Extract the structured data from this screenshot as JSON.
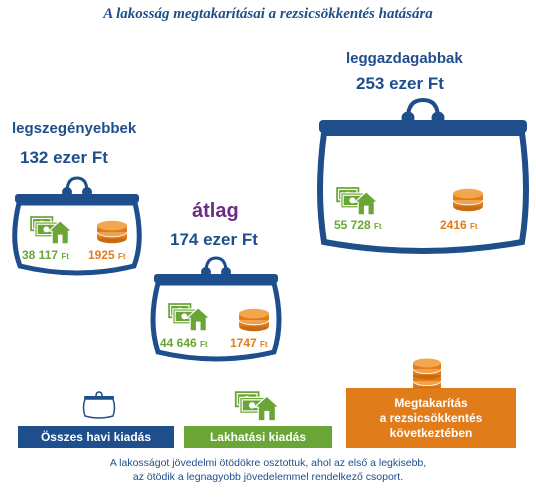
{
  "title": "A lakosság megtakarításai a rezsicsökkentés hatására",
  "colors": {
    "blue": "#1f4e8c",
    "green": "#6aa535",
    "orange": "#e07d1a",
    "purple": "#6b2d82"
  },
  "chart_data": {
    "type": "other",
    "groups": [
      {
        "name": "legszegényebbek",
        "total_label": "132 ezer Ft",
        "total": 132,
        "lakhatasi_label": "38 117",
        "lakhatasi": 38117,
        "megtakaritas_label": "1925",
        "megtakaritas": 1925,
        "unit": "Ft"
      },
      {
        "name": "átlag",
        "total_label": "174 ezer Ft",
        "total": 174,
        "lakhatasi_label": "44 646",
        "lakhatasi": 44646,
        "megtakaritas_label": "1747",
        "megtakaritas": 1747,
        "unit": "Ft"
      },
      {
        "name": "leggazdagabbak",
        "total_label": "253 ezer Ft",
        "total": 253,
        "lakhatasi_label": "55 728",
        "lakhatasi": 55728,
        "megtakaritas_label": "2416",
        "megtakaritas": 2416,
        "unit": "Ft"
      }
    ],
    "legend": [
      {
        "label": "Összes havi kiadás",
        "icon": "purse-icon"
      },
      {
        "label": "Lakhatási kiadás",
        "icon": "money-house-icon"
      },
      {
        "label": "Megtakarítás a rezsicsökkentés következtében",
        "line1": "Megtakarítás",
        "line2": "a rezsicsökkentés",
        "line3": "következtében",
        "icon": "coins-icon"
      }
    ],
    "footnote_line1": "A lakosságot jövedelmi ötödökre osztottuk, ahol az első a legkisebb,",
    "footnote_line2": "az ötödik a legnagyobb jövedelemmel rendelkező csoport."
  }
}
